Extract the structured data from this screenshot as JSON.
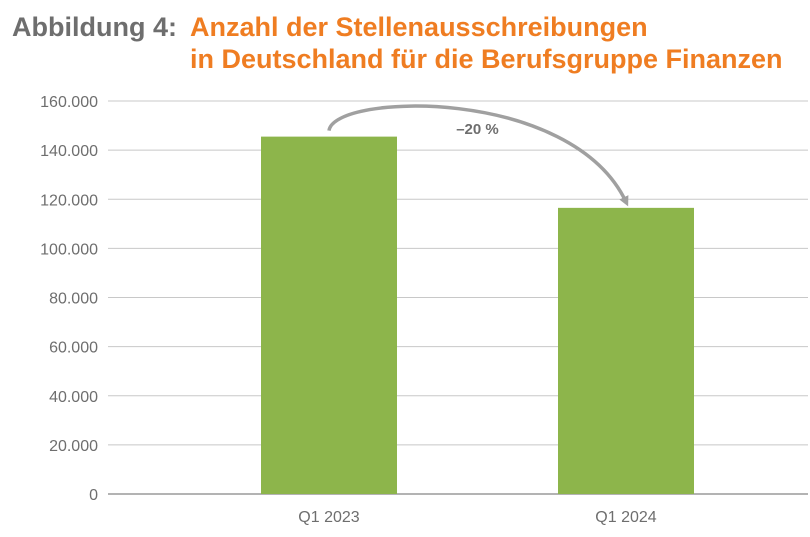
{
  "header": {
    "figure_label": "Abbildung 4:",
    "title_line1": "Anzahl der Stellenausschreibungen",
    "title_line2": "in Deutschland für die Berufsgruppe Finanzen"
  },
  "colors": {
    "bar": "#8db54b",
    "grid": "#c8c8c8",
    "axis": "#9a9a9a",
    "text": "#6e6e6e",
    "title_accent": "#ef7d22",
    "arrow": "#a0a0a0"
  },
  "chart_data": {
    "type": "bar",
    "categories": [
      "Q1 2023",
      "Q1 2024"
    ],
    "values": [
      145500,
      116500
    ],
    "ylim": [
      0,
      160000
    ],
    "yticks": [
      0,
      20000,
      40000,
      60000,
      80000,
      100000,
      120000,
      140000,
      160000
    ],
    "ytick_labels": [
      "0",
      "20.000",
      "40.000",
      "60.000",
      "80.000",
      "100.000",
      "120.000",
      "140.000",
      "160.000"
    ],
    "grid": true,
    "annotation": {
      "text": "–20 %",
      "from_category": "Q1 2023",
      "to_category": "Q1 2024"
    },
    "xlabel": "",
    "ylabel": ""
  }
}
